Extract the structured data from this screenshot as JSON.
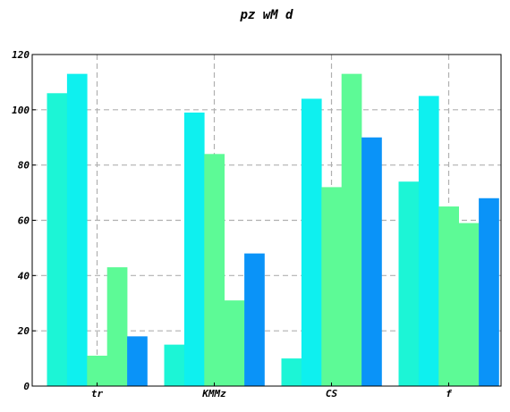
{
  "chart_data": {
    "type": "bar",
    "title": "pz wM d",
    "xlabel": "",
    "ylabel": "",
    "categories": [
      "tr",
      "KMMz",
      "CS",
      "f"
    ],
    "series": [
      {
        "color": "#1cf5d6",
        "values": [
          106,
          15,
          10,
          74
        ]
      },
      {
        "color": "#0ef0ef",
        "values": [
          113,
          99,
          104,
          105
        ]
      },
      {
        "color": "#5dfa96",
        "values": [
          11,
          84,
          72,
          65
        ]
      },
      {
        "color": "#5dfa96",
        "values": [
          43,
          31,
          113,
          59
        ]
      },
      {
        "color": "#0a93f8",
        "values": [
          18,
          48,
          90,
          68
        ]
      }
    ],
    "ylim": [
      0,
      120
    ],
    "yticks": [
      0,
      20,
      40,
      60,
      80,
      100,
      120
    ],
    "grid": true,
    "grid_style": "dashed",
    "legend": "none"
  }
}
